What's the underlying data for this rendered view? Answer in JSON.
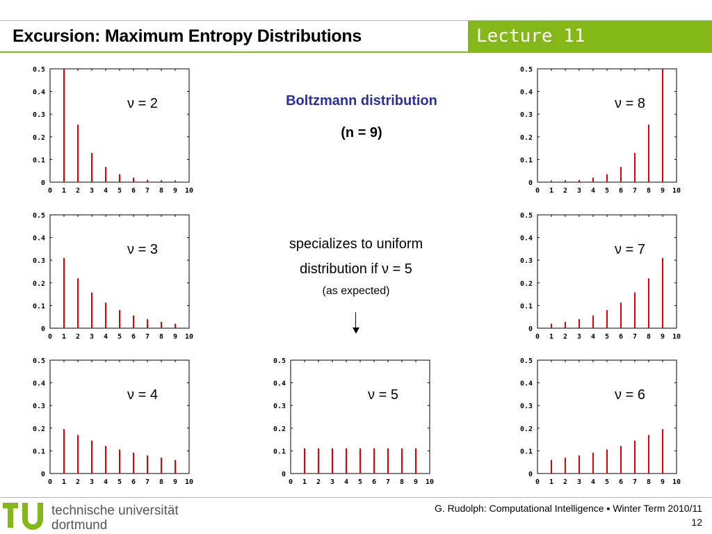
{
  "header": {
    "title": "Excursion: Maximum Entropy Distributions",
    "lecture": "Lecture 11"
  },
  "center": {
    "heading": "Boltzmann distribution",
    "subheading": "(n = 9)",
    "note_line1": "specializes to uniform",
    "note_line2": "distribution if ν = 5",
    "note_small": "(as expected)"
  },
  "colors": {
    "accent_green": "#84b818",
    "heading_blue": "#2a2fa0",
    "bar_red": "#e00000"
  },
  "chart_data": [
    {
      "type": "bar",
      "title": "",
      "label": "ν = 2",
      "x": [
        1,
        2,
        3,
        4,
        5,
        6,
        7,
        8,
        9
      ],
      "values": [
        0.5,
        0.254,
        0.129,
        0.067,
        0.035,
        0.02,
        0.01,
        0.006,
        0.004
      ],
      "xlim": [
        0,
        10
      ],
      "ylim": [
        0,
        0.5
      ],
      "xticks": [
        "0",
        "1",
        "2",
        "3",
        "4",
        "5",
        "6",
        "7",
        "8",
        "9",
        "10"
      ],
      "yticks": [
        "0",
        "0.1",
        "0.2",
        "0.3",
        "0.4",
        "0.5"
      ],
      "grid": false
    },
    {
      "type": "bar",
      "title": "",
      "label": "ν = 3",
      "x": [
        1,
        2,
        3,
        4,
        5,
        6,
        7,
        8,
        9
      ],
      "values": [
        0.31,
        0.22,
        0.158,
        0.113,
        0.08,
        0.056,
        0.04,
        0.028,
        0.02
      ],
      "xlim": [
        0,
        10
      ],
      "ylim": [
        0,
        0.5
      ],
      "xticks": [
        "0",
        "1",
        "2",
        "3",
        "4",
        "5",
        "6",
        "7",
        "8",
        "9",
        "10"
      ],
      "yticks": [
        "0",
        "0.1",
        "0.2",
        "0.3",
        "0.4",
        "0.5"
      ],
      "grid": false
    },
    {
      "type": "bar",
      "title": "",
      "label": "ν = 4",
      "x": [
        1,
        2,
        3,
        4,
        5,
        6,
        7,
        8,
        9
      ],
      "values": [
        0.196,
        0.17,
        0.145,
        0.122,
        0.106,
        0.092,
        0.08,
        0.07,
        0.06
      ],
      "xlim": [
        0,
        10
      ],
      "ylim": [
        0,
        0.5
      ],
      "xticks": [
        "0",
        "1",
        "2",
        "3",
        "4",
        "5",
        "6",
        "7",
        "8",
        "9",
        "10"
      ],
      "yticks": [
        "0",
        "0.1",
        "0.2",
        "0.3",
        "0.4",
        "0.5"
      ],
      "grid": false
    },
    {
      "type": "bar",
      "title": "",
      "label": "ν = 5",
      "x": [
        1,
        2,
        3,
        4,
        5,
        6,
        7,
        8,
        9
      ],
      "values": [
        0.111,
        0.111,
        0.111,
        0.111,
        0.111,
        0.111,
        0.111,
        0.111,
        0.111
      ],
      "xlim": [
        0,
        10
      ],
      "ylim": [
        0,
        0.5
      ],
      "xticks": [
        "0",
        "1",
        "2",
        "3",
        "4",
        "5",
        "6",
        "7",
        "8",
        "9",
        "10"
      ],
      "yticks": [
        "0",
        "0.1",
        "0.2",
        "0.3",
        "0.4",
        "0.5"
      ],
      "grid": false
    },
    {
      "type": "bar",
      "title": "",
      "label": "ν = 6",
      "x": [
        1,
        2,
        3,
        4,
        5,
        6,
        7,
        8,
        9
      ],
      "values": [
        0.06,
        0.07,
        0.08,
        0.092,
        0.106,
        0.122,
        0.145,
        0.17,
        0.196
      ],
      "xlim": [
        0,
        10
      ],
      "ylim": [
        0,
        0.5
      ],
      "xticks": [
        "0",
        "1",
        "2",
        "3",
        "4",
        "5",
        "6",
        "7",
        "8",
        "9",
        "10"
      ],
      "yticks": [
        "0",
        "0.1",
        "0.2",
        "0.3",
        "0.4",
        "0.5"
      ],
      "grid": false
    },
    {
      "type": "bar",
      "title": "",
      "label": "ν = 7",
      "x": [
        1,
        2,
        3,
        4,
        5,
        6,
        7,
        8,
        9
      ],
      "values": [
        0.02,
        0.028,
        0.04,
        0.056,
        0.08,
        0.113,
        0.158,
        0.22,
        0.31
      ],
      "xlim": [
        0,
        10
      ],
      "ylim": [
        0,
        0.5
      ],
      "xticks": [
        "0",
        "1",
        "2",
        "3",
        "4",
        "5",
        "6",
        "7",
        "8",
        "9",
        "10"
      ],
      "yticks": [
        "0",
        "0.1",
        "0.2",
        "0.3",
        "0.4",
        "0.5"
      ],
      "grid": false
    },
    {
      "type": "bar",
      "title": "",
      "label": "ν = 8",
      "x": [
        1,
        2,
        3,
        4,
        5,
        6,
        7,
        8,
        9
      ],
      "values": [
        0.004,
        0.006,
        0.01,
        0.02,
        0.035,
        0.067,
        0.129,
        0.254,
        0.5
      ],
      "xlim": [
        0,
        10
      ],
      "ylim": [
        0,
        0.5
      ],
      "xticks": [
        "0",
        "1",
        "2",
        "3",
        "4",
        "5",
        "6",
        "7",
        "8",
        "9",
        "10"
      ],
      "yticks": [
        "0",
        "0.1",
        "0.2",
        "0.3",
        "0.4",
        "0.5"
      ],
      "grid": false
    }
  ],
  "footer": {
    "university_line1": "technische universität",
    "university_line2": "dortmund",
    "credit": "G. Rudolph: Computational Intelligence ▪ Winter Term 2010/11",
    "page_number": "12"
  }
}
